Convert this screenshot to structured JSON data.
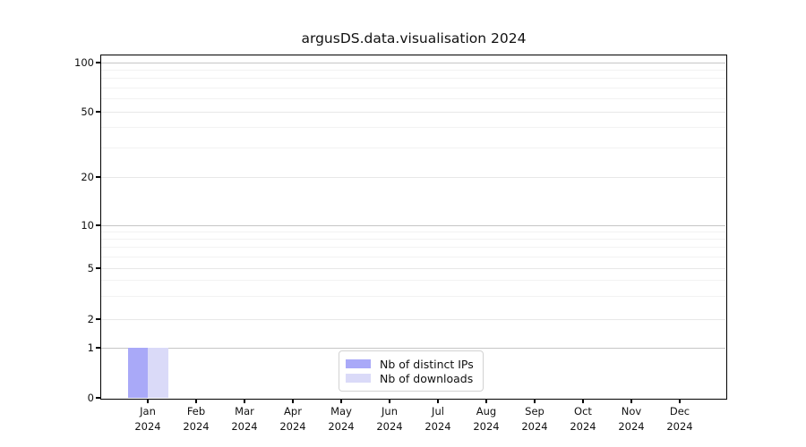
{
  "chart_data": {
    "type": "bar",
    "title": "argusDS.data.visualisation 2024",
    "categories": [
      "Jan 2024",
      "Feb 2024",
      "Mar 2024",
      "Apr 2024",
      "May 2024",
      "Jun 2024",
      "Jul 2024",
      "Aug 2024",
      "Sep 2024",
      "Oct 2024",
      "Nov 2024",
      "Dec 2024"
    ],
    "series": [
      {
        "name": "Nb of distinct IPs",
        "color": "#a9a9f8",
        "values": [
          1,
          0,
          0,
          0,
          0,
          0,
          0,
          0,
          0,
          0,
          0,
          0
        ]
      },
      {
        "name": "Nb of downloads",
        "color": "#dadaf8",
        "values": [
          1,
          0,
          0,
          0,
          0,
          0,
          0,
          0,
          0,
          0,
          0,
          0
        ]
      }
    ],
    "y_axis": {
      "scale": "symlog",
      "ticks": [
        0,
        1,
        2,
        5,
        10,
        20,
        50,
        100
      ],
      "minor_gridlines": [
        3,
        4,
        6,
        7,
        8,
        9,
        30,
        40,
        60,
        70,
        80,
        90
      ],
      "ylim": [
        0,
        110
      ]
    },
    "xlabel": "",
    "ylabel": "",
    "grid": "horizontal",
    "legend": {
      "position": "lower center",
      "entries": [
        "Nb of distinct IPs",
        "Nb of downloads"
      ]
    },
    "colors": {
      "decade_gridline": "#c6c6c6",
      "major_gridline": "#e8e8e8",
      "minor_gridline": "#f2f2f2",
      "spine": "#000000"
    }
  }
}
